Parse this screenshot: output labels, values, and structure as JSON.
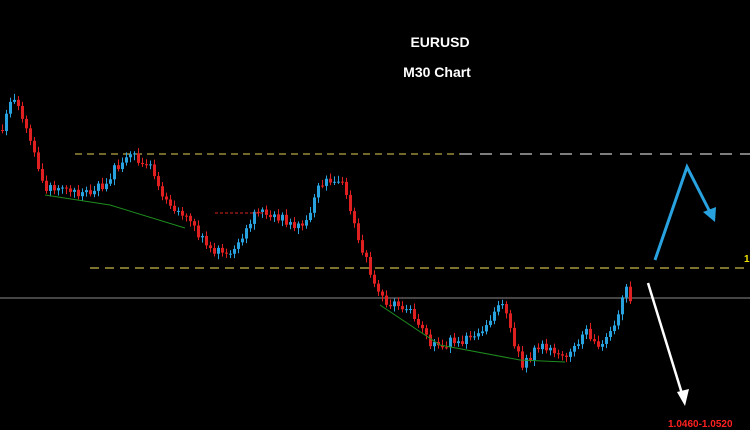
{
  "header": {
    "symbol": "EURUSD",
    "timeframe": "M30 Chart"
  },
  "level_label": "1",
  "target_label": "1.0460-1.0520"
}
